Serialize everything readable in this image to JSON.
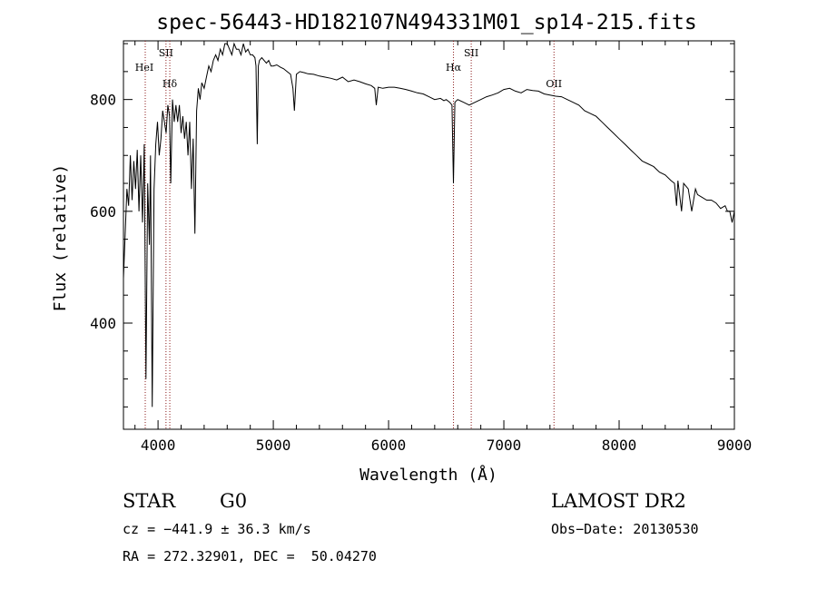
{
  "chart_data": {
    "type": "line",
    "title": "spec-56443-HD182107N494331M01_sp14-215.fits",
    "xlabel": "Wavelength (Å)",
    "ylabel": "Flux (relative)",
    "xlim": [
      3700,
      9000
    ],
    "ylim": [
      210,
      905
    ],
    "xticks": [
      4000,
      5000,
      6000,
      7000,
      8000,
      9000
    ],
    "yticks": [
      400,
      600,
      800
    ],
    "grid": false,
    "line_color": "#000000",
    "marker_color": "#8b1a1a",
    "lines": [
      {
        "label": "HeI",
        "wavelength": 3889
      },
      {
        "label": "SII",
        "wavelength": 4069
      },
      {
        "label": "Hδ",
        "wavelength": 4102
      },
      {
        "label": "Hα",
        "wavelength": 6563
      },
      {
        "label": "SII",
        "wavelength": 6717
      },
      {
        "label": "OII",
        "wavelength": 7435
      }
    ],
    "series": [
      {
        "x": [
          3700,
          3715,
          3730,
          3745,
          3760,
          3775,
          3790,
          3805,
          3820,
          3835,
          3850,
          3865,
          3880,
          3895,
          3910,
          3925,
          3935,
          3950,
          3965,
          3980,
          3995,
          4010,
          4025,
          4040,
          4055,
          4070,
          4085,
          4100,
          4110,
          4125,
          4140,
          4155,
          4170,
          4185,
          4200,
          4215,
          4230,
          4245,
          4260,
          4275,
          4290,
          4305,
          4320,
          4335,
          4350,
          4365,
          4380,
          4400,
          4420,
          4440,
          4460,
          4480,
          4500,
          4520,
          4540,
          4560,
          4580,
          4600,
          4620,
          4640,
          4660,
          4680,
          4700,
          4720,
          4740,
          4760,
          4780,
          4800,
          4820,
          4840,
          4850,
          4861,
          4870,
          4880,
          4900,
          4920,
          4940,
          4960,
          4980,
          5000,
          5030,
          5060,
          5090,
          5120,
          5150,
          5170,
          5183,
          5200,
          5230,
          5270,
          5300,
          5350,
          5400,
          5450,
          5500,
          5550,
          5600,
          5650,
          5700,
          5750,
          5800,
          5850,
          5880,
          5893,
          5910,
          5950,
          6000,
          6050,
          6100,
          6150,
          6200,
          6250,
          6300,
          6350,
          6400,
          6450,
          6480,
          6500,
          6530,
          6550,
          6563,
          6575,
          6600,
          6650,
          6700,
          6750,
          6800,
          6850,
          6900,
          6950,
          7000,
          7050,
          7100,
          7150,
          7200,
          7250,
          7300,
          7350,
          7400,
          7450,
          7500,
          7550,
          7600,
          7650,
          7700,
          7750,
          7800,
          7850,
          7900,
          7950,
          8000,
          8050,
          8100,
          8150,
          8200,
          8250,
          8300,
          8350,
          8400,
          8450,
          8480,
          8498,
          8510,
          8542,
          8560,
          8600,
          8630,
          8662,
          8680,
          8720,
          8760,
          8800,
          8840,
          8880,
          8920,
          8940,
          8960,
          8980,
          9000
        ],
        "y": [
          480,
          560,
          640,
          610,
          700,
          620,
          690,
          640,
          710,
          600,
          700,
          580,
          720,
          300,
          650,
          540,
          700,
          250,
          640,
          720,
          760,
          700,
          730,
          780,
          760,
          740,
          790,
          770,
          650,
          800,
          760,
          790,
          760,
          790,
          740,
          770,
          730,
          760,
          700,
          760,
          640,
          730,
          560,
          780,
          820,
          800,
          830,
          820,
          840,
          860,
          850,
          870,
          880,
          870,
          890,
          880,
          900,
          900,
          890,
          880,
          900,
          890,
          890,
          880,
          900,
          885,
          890,
          880,
          880,
          875,
          860,
          720,
          860,
          870,
          875,
          870,
          865,
          870,
          860,
          860,
          862,
          858,
          855,
          850,
          845,
          820,
          780,
          845,
          850,
          848,
          846,
          845,
          842,
          840,
          838,
          835,
          840,
          832,
          835,
          832,
          828,
          825,
          820,
          790,
          822,
          820,
          822,
          822,
          820,
          818,
          815,
          812,
          810,
          805,
          800,
          802,
          798,
          800,
          795,
          790,
          650,
          795,
          800,
          795,
          790,
          795,
          800,
          805,
          808,
          812,
          818,
          820,
          815,
          812,
          818,
          816,
          815,
          810,
          808,
          806,
          805,
          800,
          795,
          790,
          780,
          775,
          770,
          760,
          750,
          740,
          730,
          720,
          710,
          700,
          690,
          685,
          680,
          670,
          665,
          655,
          650,
          610,
          655,
          600,
          650,
          640,
          600,
          640,
          630,
          625,
          620,
          620,
          615,
          605,
          610,
          600,
          600,
          580,
          600
        ]
      }
    ]
  },
  "info": {
    "class": "STAR",
    "subclass": "G0",
    "survey": "LAMOST DR2",
    "cz": "cz = −441.9 ± 36.3 km/s",
    "obsdate": "Obs−Date: 20130530",
    "radec": "RA = 272.32901, DEC =  50.04270"
  }
}
